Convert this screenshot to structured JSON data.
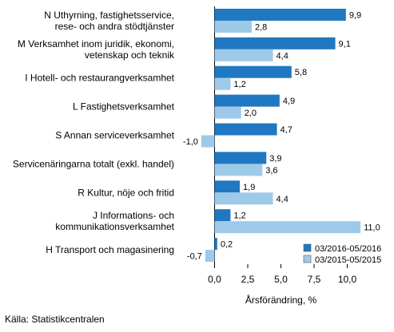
{
  "chart_data": {
    "type": "bar",
    "orientation": "horizontal",
    "categories": [
      [
        "N Uthyrning, fastighetsservice,",
        "rese- och andra stödtjänster"
      ],
      [
        "M Verksamhet inom juridik, ekonomi,",
        "vetenskap och teknik"
      ],
      [
        "I Hotell- och restaurangverksamhet"
      ],
      [
        "L Fastighetsverksamhet"
      ],
      [
        "S Annan serviceverksamhet"
      ],
      [
        "Servicenäringarna totalt (exkl. handel)"
      ],
      [
        "R Kultur, nöje och fritid"
      ],
      [
        "J Informations- och",
        "kommunikationsverksamhet"
      ],
      [
        "H Transport och magasinering"
      ]
    ],
    "series": [
      {
        "name": "03/2016-05/2016",
        "color": "#1f78c1",
        "values": [
          9.9,
          9.1,
          5.8,
          4.9,
          4.7,
          3.9,
          1.9,
          1.2,
          0.2
        ],
        "labels": [
          "9,9",
          "9,1",
          "5,8",
          "4,9",
          "4,7",
          "3,9",
          "1,9",
          "1,2",
          "0,2"
        ]
      },
      {
        "name": "03/2015-05/2015",
        "color": "#9ecae9",
        "values": [
          2.8,
          4.4,
          1.2,
          2.0,
          -1.0,
          3.6,
          4.4,
          11.0,
          -0.7
        ],
        "labels": [
          "2,8",
          "4,4",
          "1,2",
          "2,0",
          "-1,0",
          "3,6",
          "4,4",
          "11,0",
          "-0,7"
        ]
      }
    ],
    "xlim": [
      -2.5,
      12.0
    ],
    "xticks": [
      0,
      2.5,
      5,
      7.5,
      10
    ],
    "xtick_labels": [
      "0,0",
      "2,5",
      "5,0",
      "7,5",
      "10,0"
    ],
    "xlabel": "Årsförändring, %",
    "legend_position": "bottom-right"
  },
  "source": "Källa: Statistikcentralen"
}
